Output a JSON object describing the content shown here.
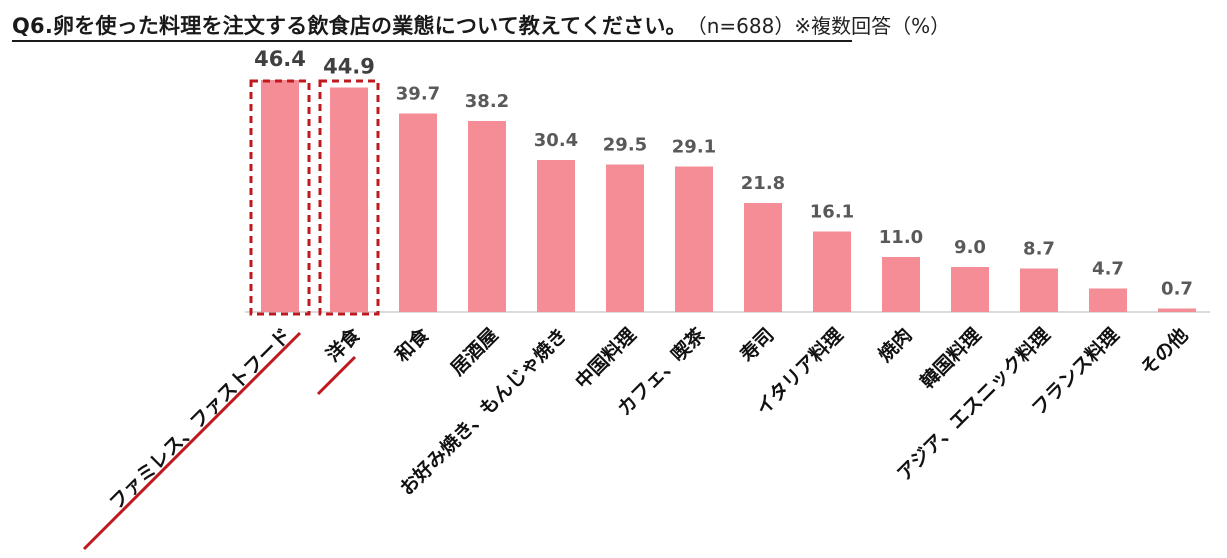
{
  "title": "Q6.卵を使った料理を注文する飲食店の業態について教えてください。",
  "note": "（n=688）※複数回答（%）",
  "colors": {
    "bar": "#f58d96",
    "highlight": "#c0181f",
    "label": "#595959",
    "axis": "#cfcfcf",
    "text": "#111111"
  },
  "chart_data": {
    "type": "bar",
    "title": "Q6.卵を使った料理を注文する飲食店の業態について教えてください。",
    "ylabel": "",
    "xlabel": "",
    "ylim": [
      0,
      50
    ],
    "grid": false,
    "categories": [
      "ファミレス、ファストフード",
      "洋食",
      "和食",
      "居酒屋",
      "お好み焼き、もんじゃ焼き",
      "中国料理",
      "カフェ、喫茶",
      "寿司",
      "イタリア料理",
      "焼肉",
      "韓国料理",
      "アジア、エスニック料理",
      "フランス料理",
      "その他"
    ],
    "values": [
      46.4,
      44.9,
      39.7,
      38.2,
      30.4,
      29.5,
      29.1,
      21.8,
      16.1,
      11.0,
      9.0,
      8.7,
      4.7,
      0.7
    ],
    "value_labels": [
      "46.4",
      "44.9",
      "39.7",
      "38.2",
      "30.4",
      "29.5",
      "29.1",
      "21.8",
      "16.1",
      "11.0",
      "9.0",
      "8.7",
      "4.7",
      "0.7"
    ],
    "highlighted": [
      "ファミレス、ファストフード",
      "洋食"
    ]
  }
}
